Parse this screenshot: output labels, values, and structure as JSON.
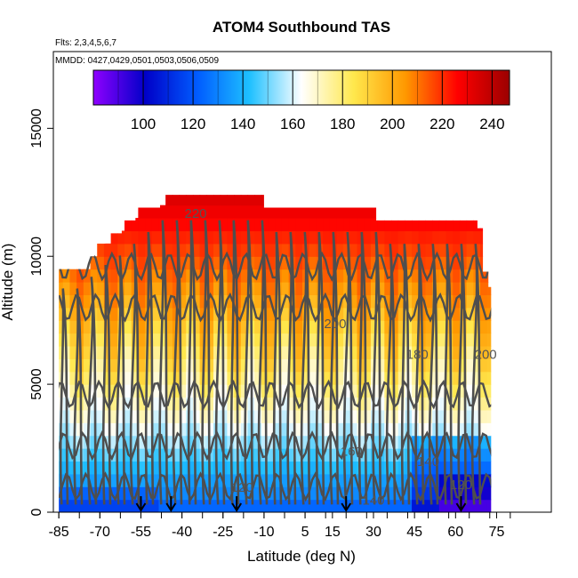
{
  "chart_data": {
    "type": "heatmap",
    "title": "ATOM4 Southbound TAS",
    "flights_label": "Flts: 2,3,4,5,6,7",
    "dates_label": "MMDD: 0427,0429,0501,0503,0506,0509",
    "xlabel": "Latitude (deg N)",
    "ylabel": "Altitude (m)",
    "xlim": [
      -87,
      95
    ],
    "ylim": [
      0,
      18000
    ],
    "x_ticks": [
      -85,
      -70,
      -55,
      -40,
      -25,
      -10,
      5,
      15,
      30,
      45,
      60,
      75
    ],
    "y_ticks": [
      0,
      5000,
      10000,
      15000
    ],
    "colorbar": {
      "range": [
        80,
        247
      ],
      "ticks": [
        100,
        120,
        140,
        160,
        180,
        200,
        220,
        240
      ],
      "colors": [
        "#8f00ff",
        "#0000c8",
        "#005cff",
        "#1ec0ff",
        "#ffffff",
        "#ffe84d",
        "#ff9800",
        "#ff0000",
        "#9b0000"
      ]
    },
    "contour_labels": [
      {
        "value": "220",
        "lat": -35,
        "alt": 11500
      },
      {
        "value": "200",
        "lat": 16,
        "alt": 7200
      },
      {
        "value": "180",
        "lat": 46,
        "alt": 6000
      },
      {
        "value": "200",
        "lat": 71,
        "alt": 6000
      },
      {
        "value": "160",
        "lat": 22,
        "alt": 2200
      },
      {
        "value": "140",
        "lat": 50,
        "alt": 1800
      },
      {
        "value": "140",
        "lat": 30,
        "alt": 300
      },
      {
        "value": "120",
        "lat": 62,
        "alt": 900
      },
      {
        "value": "120",
        "lat": -18,
        "alt": 800
      }
    ],
    "profile_markers_lat": [
      -55,
      -44,
      -20,
      20,
      62
    ],
    "column_tops_alt": [
      {
        "lat": -85,
        "top": 9500
      },
      {
        "lat": -80,
        "top": 9500
      },
      {
        "lat": -76,
        "top": 10000
      },
      {
        "lat": -72,
        "top": 10500
      },
      {
        "lat": -68,
        "top": 10900
      },
      {
        "lat": -62,
        "top": 11400
      },
      {
        "lat": -57,
        "top": 11900
      },
      {
        "lat": -48,
        "top": 12400
      },
      {
        "lat": -24,
        "top": 12400
      },
      {
        "lat": -10,
        "top": 11900
      },
      {
        "lat": 4,
        "top": 11900
      },
      {
        "lat": 23,
        "top": 11900
      },
      {
        "lat": 31,
        "top": 11400
      },
      {
        "lat": 55,
        "top": 11400
      },
      {
        "lat": 68,
        "top": 11100
      },
      {
        "lat": 70,
        "top": 9400
      },
      {
        "lat": 72,
        "top": 8800
      }
    ]
  }
}
